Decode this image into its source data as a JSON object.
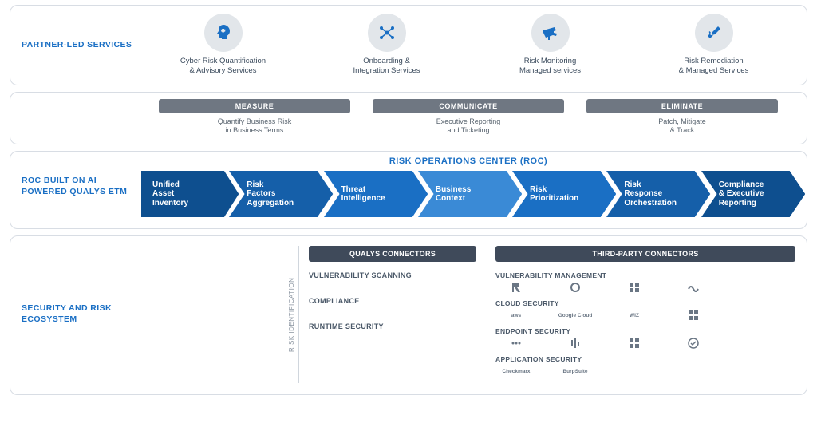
{
  "colors": {
    "accent": "#1a6fc4",
    "panel_border": "#d8dde4",
    "pill_bg": "#6f7782",
    "eco_head_bg": "#3f4a5a",
    "icon_circle_bg": "#e2e6ea",
    "text_body": "#3a4a5c",
    "text_muted": "#5a6570",
    "chevron_dark": "#0e4f8f",
    "chevron_mid": "#1a6fc4",
    "chevron_light": "#3a8ad6"
  },
  "panel1": {
    "label": "PARTNER-LED SERVICES",
    "services": [
      {
        "icon": "head-gear-icon",
        "label": "Cyber Risk Quantification\n& Advisory Services"
      },
      {
        "icon": "network-icon",
        "label": "Onboarding &\nIntegration Services"
      },
      {
        "icon": "camera-icon",
        "label": "Risk Monitoring\nManaged services"
      },
      {
        "icon": "tools-icon",
        "label": "Risk Remediation\n& Managed Services"
      }
    ]
  },
  "panel2": {
    "pills": [
      {
        "head": "MEASURE",
        "sub": "Quantify Business Risk\nin Business Terms"
      },
      {
        "head": "COMMUNICATE",
        "sub": "Executive Reporting\nand Ticketing"
      },
      {
        "head": "ELIMINATE",
        "sub": "Patch, Mitigate\n& Track"
      }
    ]
  },
  "panel3": {
    "label": "ROC BUILT ON AI POWERED QUALYS ETM",
    "title": "RISK OPERATIONS CENTER (ROC)",
    "chevrons": [
      {
        "text": "Unified Asset Inventory",
        "color": "#0e4f8f"
      },
      {
        "text": "Risk Factors Aggregation",
        "color": "#155fa9"
      },
      {
        "text": "Threat Intelligence",
        "color": "#1a6fc4"
      },
      {
        "text": "Business Context",
        "color": "#3a8ad6"
      },
      {
        "text": "Risk Prioritization",
        "color": "#1a6fc4"
      },
      {
        "text": "Risk Response Orchestration",
        "color": "#155fa9"
      },
      {
        "text": "Compliance & Executive Reporting",
        "color": "#0e4f8f"
      }
    ]
  },
  "panel4": {
    "label": "SECURITY AND RISK ECOSYSTEM",
    "vertical_label": "RISK IDENTIFICATION",
    "qualys_head": "QUALYS CONNECTORS",
    "thirdparty_head": "THIRD-PARTY CONNECTORS",
    "qualys_items": [
      "VULNERABILITY SCANNING",
      "COMPLIANCE",
      "RUNTIME SECURITY"
    ],
    "thirdparty_groups": [
      {
        "head": "VULNERABILITY MANAGEMENT",
        "logos": [
          "logo-r",
          "logo-circle",
          "logo-grid",
          "logo-wave"
        ]
      },
      {
        "head": "CLOUD SECURITY",
        "logos": [
          "aws",
          "Google Cloud",
          "WIZ",
          "logo-grid"
        ]
      },
      {
        "head": "ENDPOINT SECURITY",
        "logos": [
          "logo-dots",
          "logo-bars",
          "logo-grid",
          "logo-check"
        ]
      },
      {
        "head": "APPLICATION SECURITY",
        "logos": [
          "Checkmarx",
          "BurpSuite"
        ]
      }
    ]
  }
}
